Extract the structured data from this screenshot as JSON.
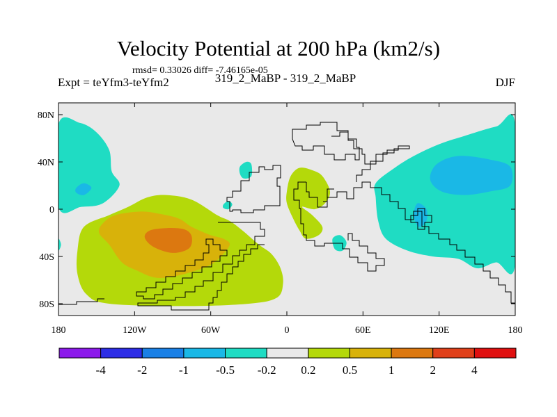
{
  "chart_data": {
    "type": "heatmap",
    "title": "Velocity Potential at 200 hPa (km2/s)",
    "stats": "rmsd= 0.33026  diff= -7.46165e-05",
    "left_label": "Expt = teYfm3-teYfm2",
    "center_label": "319_2_MaBP - 319_2_MaBP",
    "right_label": "DJF",
    "xlabel": "",
    "ylabel": "",
    "x_range": [
      -180,
      180
    ],
    "y_range": [
      -90,
      90
    ],
    "x_ticks": [
      {
        "value": -180,
        "label": "180"
      },
      {
        "value": -120,
        "label": "120W"
      },
      {
        "value": -60,
        "label": "60W"
      },
      {
        "value": 0,
        "label": "0"
      },
      {
        "value": 60,
        "label": "60E"
      },
      {
        "value": 120,
        "label": "120E"
      },
      {
        "value": 180,
        "label": "180"
      }
    ],
    "y_ticks": [
      {
        "value": 80,
        "label": "80N"
      },
      {
        "value": 40,
        "label": "40N"
      },
      {
        "value": 0,
        "label": "0"
      },
      {
        "value": -40,
        "label": "40S"
      },
      {
        "value": -80,
        "label": "80S"
      }
    ],
    "colorbar": {
      "colors": [
        "#8c1aeb",
        "#2d2de6",
        "#1a80e6",
        "#1ab8e6",
        "#1fdcc3",
        "#e9e9e9",
        "#b4d90a",
        "#d8b20a",
        "#dc7810",
        "#e0401a",
        "#e01010"
      ],
      "labels": [
        "-4",
        "-2",
        "-1",
        "-0.5",
        "-0.2",
        "0.2",
        "0.5",
        "1",
        "2",
        "4"
      ]
    },
    "contours": [
      {
        "level": "-0.5 to -0.2",
        "color": "#1fdcc3",
        "points": [
          [
            -180,
            72
          ],
          [
            -163,
            73
          ],
          [
            -150,
            65
          ],
          [
            -140,
            50
          ],
          [
            -138,
            32
          ],
          [
            -132,
            20
          ],
          [
            -145,
            5
          ],
          [
            -162,
            2
          ],
          [
            -180,
            2
          ]
        ]
      },
      {
        "level": "-0.5 to -0.2",
        "color": "#1fdcc3",
        "points": [
          [
            -180,
            -35
          ],
          [
            -178,
            -30
          ],
          [
            -180,
            -25
          ]
        ]
      },
      {
        "level": "-1 to -0.5",
        "color": "#1ab8e6",
        "points": [
          [
            -166,
            18
          ],
          [
            -160,
            22
          ],
          [
            -154,
            18
          ],
          [
            -160,
            12
          ],
          [
            -166,
            14
          ]
        ]
      },
      {
        "level": "-0.5 to -0.2",
        "color": "#1fdcc3",
        "points": [
          [
            -37,
            36
          ],
          [
            -32,
            40
          ],
          [
            -28,
            38
          ],
          [
            -28,
            28
          ],
          [
            -34,
            26
          ],
          [
            -37,
            30
          ]
        ]
      },
      {
        "level": "-0.5 to -0.2",
        "color": "#1fdcc3",
        "points": [
          [
            -50,
            4
          ],
          [
            -46,
            7
          ],
          [
            -43,
            4
          ],
          [
            -46,
            0
          ],
          [
            -50,
            1
          ]
        ]
      },
      {
        "level": "-0.5 to -0.2",
        "color": "#1fdcc3",
        "points": [
          [
            36,
            -25
          ],
          [
            42,
            -22
          ],
          [
            47,
            -28
          ],
          [
            44,
            -35
          ],
          [
            38,
            -34
          ]
        ]
      },
      {
        "level": "-0.5 to -0.2",
        "color": "#1fdcc3",
        "points": [
          [
            70,
            22
          ],
          [
            85,
            35
          ],
          [
            100,
            45
          ],
          [
            120,
            55
          ],
          [
            140,
            62
          ],
          [
            165,
            70
          ],
          [
            180,
            72
          ],
          [
            180,
            -47
          ],
          [
            165,
            -45
          ],
          [
            150,
            -50
          ],
          [
            135,
            -42
          ],
          [
            115,
            -40
          ],
          [
            95,
            -35
          ],
          [
            78,
            -25
          ],
          [
            72,
            -10
          ],
          [
            70,
            10
          ]
        ]
      },
      {
        "level": "-1 to -0.5",
        "color": "#1ab8e6",
        "points": [
          [
            118,
            38
          ],
          [
            135,
            45
          ],
          [
            160,
            42
          ],
          [
            176,
            36
          ],
          [
            176,
            20
          ],
          [
            160,
            15
          ],
          [
            140,
            12
          ],
          [
            122,
            15
          ],
          [
            113,
            25
          ]
        ]
      },
      {
        "level": "-1 to -0.5",
        "color": "#1ab8e6",
        "points": [
          [
            103,
            5
          ],
          [
            110,
            0
          ],
          [
            110,
            -10
          ],
          [
            104,
            -15
          ],
          [
            100,
            -5
          ]
        ]
      },
      {
        "level": "0.2 to 0.5",
        "color": "#b4d90a",
        "points": [
          [
            -160,
            -15
          ],
          [
            -140,
            -5
          ],
          [
            -125,
            2
          ],
          [
            -110,
            10
          ],
          [
            -95,
            12
          ],
          [
            -75,
            8
          ],
          [
            -55,
            -5
          ],
          [
            -45,
            -10
          ],
          [
            -35,
            -18
          ],
          [
            -22,
            -30
          ],
          [
            -12,
            -38
          ],
          [
            -5,
            -50
          ],
          [
            -3,
            -63
          ],
          [
            -8,
            -75
          ],
          [
            -30,
            -80
          ],
          [
            -80,
            -82
          ],
          [
            -140,
            -80
          ],
          [
            -158,
            -72
          ],
          [
            -165,
            -55
          ],
          [
            -165,
            -35
          ]
        ]
      },
      {
        "level": "0.5 to 1",
        "color": "#d8b20a",
        "points": [
          [
            -145,
            -12
          ],
          [
            -135,
            -5
          ],
          [
            -115,
            -2
          ],
          [
            -100,
            -4
          ],
          [
            -85,
            -8
          ],
          [
            -75,
            -15
          ],
          [
            -60,
            -22
          ],
          [
            -50,
            -25
          ],
          [
            -45,
            -30
          ],
          [
            -52,
            -40
          ],
          [
            -62,
            -48
          ],
          [
            -85,
            -56
          ],
          [
            -103,
            -58
          ],
          [
            -118,
            -52
          ],
          [
            -130,
            -45
          ],
          [
            -140,
            -30
          ],
          [
            -148,
            -20
          ]
        ]
      },
      {
        "level": "1 to 2",
        "color": "#dc7810",
        "points": [
          [
            -108,
            -18
          ],
          [
            -95,
            -16
          ],
          [
            -81,
            -17
          ],
          [
            -75,
            -23
          ],
          [
            -77,
            -33
          ],
          [
            -90,
            -37
          ],
          [
            -105,
            -32
          ],
          [
            -112,
            -24
          ]
        ]
      },
      {
        "level": "0.2 to 0.5",
        "color": "#b4d90a",
        "points": [
          [
            3,
            28
          ],
          [
            10,
            35
          ],
          [
            20,
            33
          ],
          [
            28,
            28
          ],
          [
            34,
            15
          ],
          [
            30,
            5
          ],
          [
            22,
            0
          ],
          [
            12,
            2
          ],
          [
            20,
            -5
          ],
          [
            28,
            -15
          ],
          [
            25,
            -22
          ],
          [
            15,
            -25
          ],
          [
            10,
            -18
          ],
          [
            5,
            -8
          ],
          [
            0,
            5
          ],
          [
            0,
            15
          ]
        ]
      }
    ]
  }
}
